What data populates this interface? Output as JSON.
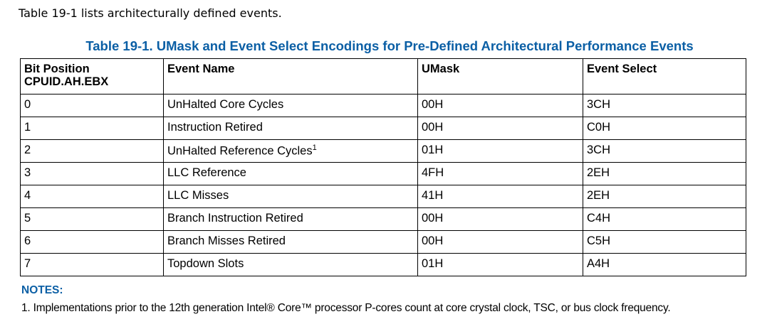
{
  "intro": "Table 19-1 lists architecturally defined events.",
  "title": "Table 19-1.  UMask and Event Select Encodings for Pre-Defined Architectural Performance Events",
  "table": {
    "headers": [
      "Bit Position\nCPUID.AH.EBX",
      "Event Name",
      "UMask",
      "Event Select"
    ],
    "header_line1": "Bit Position",
    "header_line2": "CPUID.AH.EBX",
    "rows": [
      {
        "bit": "0",
        "name": "UnHalted Core Cycles",
        "umask": "00H",
        "select": "3CH"
      },
      {
        "bit": "1",
        "name": "Instruction Retired",
        "umask": "00H",
        "select": "C0H"
      },
      {
        "bit": "2",
        "name": "UnHalted Reference Cycles",
        "sup": "1",
        "umask": "01H",
        "select": "3CH"
      },
      {
        "bit": "3",
        "name": "LLC Reference",
        "umask": "4FH",
        "select": "2EH"
      },
      {
        "bit": "4",
        "name": "LLC Misses",
        "umask": "41H",
        "select": "2EH"
      },
      {
        "bit": "5",
        "name": "Branch Instruction Retired",
        "umask": "00H",
        "select": "C4H"
      },
      {
        "bit": "6",
        "name": "Branch Misses Retired",
        "umask": "00H",
        "select": "C5H"
      },
      {
        "bit": "7",
        "name": "Topdown Slots",
        "umask": "01H",
        "select": "A4H"
      }
    ]
  },
  "notes": {
    "heading": "NOTES:",
    "items": [
      "1. Implementations prior to the 12th generation Intel® Core™ processor P-cores count at core crystal clock, TSC, or bus clock frequency."
    ]
  },
  "colors": {
    "accent": "#0b5fa5"
  }
}
